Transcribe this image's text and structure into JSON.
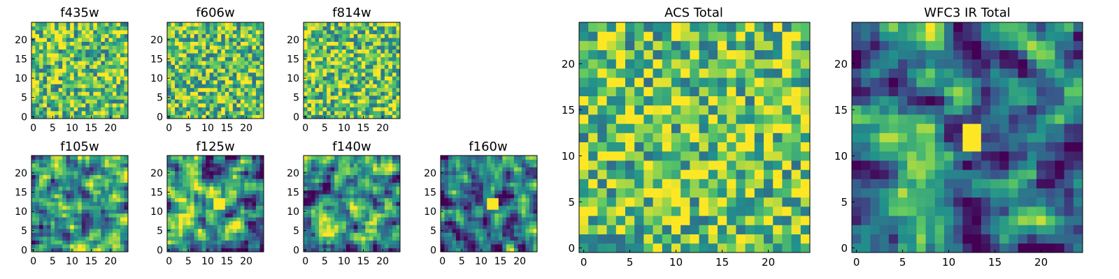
{
  "figure": {
    "colormap": "viridis",
    "colors": [
      "#440154",
      "#3b528b",
      "#21918c",
      "#5ec962",
      "#fde725"
    ]
  },
  "chart_data": [
    {
      "type": "heatmap",
      "title": "f435w",
      "grid_size": 25,
      "xticks": [
        0,
        5,
        10,
        15,
        20
      ],
      "yticks": [
        0,
        5,
        10,
        15,
        20
      ],
      "xlim": [
        -0.5,
        24.5
      ],
      "ylim": [
        -0.5,
        24.5
      ],
      "texture": "noisy-bright",
      "seed": 11
    },
    {
      "type": "heatmap",
      "title": "f606w",
      "grid_size": 25,
      "xticks": [
        0,
        5,
        10,
        15,
        20
      ],
      "yticks": [
        0,
        5,
        10,
        15,
        20
      ],
      "xlim": [
        -0.5,
        24.5
      ],
      "ylim": [
        -0.5,
        24.5
      ],
      "texture": "noisy-bright",
      "seed": 23
    },
    {
      "type": "heatmap",
      "title": "f814w",
      "grid_size": 25,
      "xticks": [
        0,
        5,
        10,
        15,
        20
      ],
      "yticks": [
        0,
        5,
        10,
        15,
        20
      ],
      "xlim": [
        -0.5,
        24.5
      ],
      "ylim": [
        -0.5,
        24.5
      ],
      "texture": "noisy-bright",
      "seed": 37
    },
    {
      "type": "heatmap",
      "title": "f105w",
      "grid_size": 25,
      "xticks": [
        0,
        5,
        10,
        15,
        20
      ],
      "yticks": [
        0,
        5,
        10,
        15,
        20
      ],
      "xlim": [
        -0.5,
        24.5
      ],
      "ylim": [
        -0.5,
        24.5
      ],
      "texture": "smooth-mid",
      "seed": 41
    },
    {
      "type": "heatmap",
      "title": "f125w",
      "grid_size": 25,
      "xticks": [
        0,
        5,
        10,
        15,
        20
      ],
      "yticks": [
        0,
        5,
        10,
        15,
        20
      ],
      "xlim": [
        -0.5,
        24.5
      ],
      "ylim": [
        -0.5,
        24.5
      ],
      "texture": "smooth-mid",
      "seed": 53,
      "peak": [
        13,
        12
      ]
    },
    {
      "type": "heatmap",
      "title": "f140w",
      "grid_size": 25,
      "xticks": [
        0,
        5,
        10,
        15,
        20
      ],
      "yticks": [
        0,
        5,
        10,
        15,
        20
      ],
      "xlim": [
        -0.5,
        24.5
      ],
      "ylim": [
        -0.5,
        24.5
      ],
      "texture": "smooth-mid",
      "seed": 67
    },
    {
      "type": "heatmap",
      "title": "f160w",
      "grid_size": 25,
      "xticks": [
        0,
        5,
        10,
        15,
        20
      ],
      "yticks": [
        0,
        5,
        10,
        15,
        20
      ],
      "xlim": [
        -0.5,
        24.5
      ],
      "ylim": [
        -0.5,
        24.5
      ],
      "texture": "smooth-dark",
      "seed": 79,
      "peak": [
        13,
        12
      ]
    },
    {
      "type": "heatmap",
      "title": "ACS Total",
      "grid_size": 25,
      "xticks": [
        0,
        5,
        10,
        15,
        20
      ],
      "yticks": [
        0,
        5,
        10,
        15,
        20
      ],
      "xlim": [
        -0.5,
        24.5
      ],
      "ylim": [
        -0.5,
        24.5
      ],
      "texture": "noisy-bright",
      "seed": 97
    },
    {
      "type": "heatmap",
      "title": "WFC3 IR Total",
      "grid_size": 25,
      "xticks": [
        0,
        5,
        10,
        15,
        20
      ],
      "yticks": [
        0,
        5,
        10,
        15,
        20
      ],
      "xlim": [
        -0.5,
        24.5
      ],
      "ylim": [
        -0.5,
        24.5
      ],
      "texture": "smooth-dark",
      "seed": 101,
      "peak": [
        12.5,
        12
      ]
    }
  ]
}
